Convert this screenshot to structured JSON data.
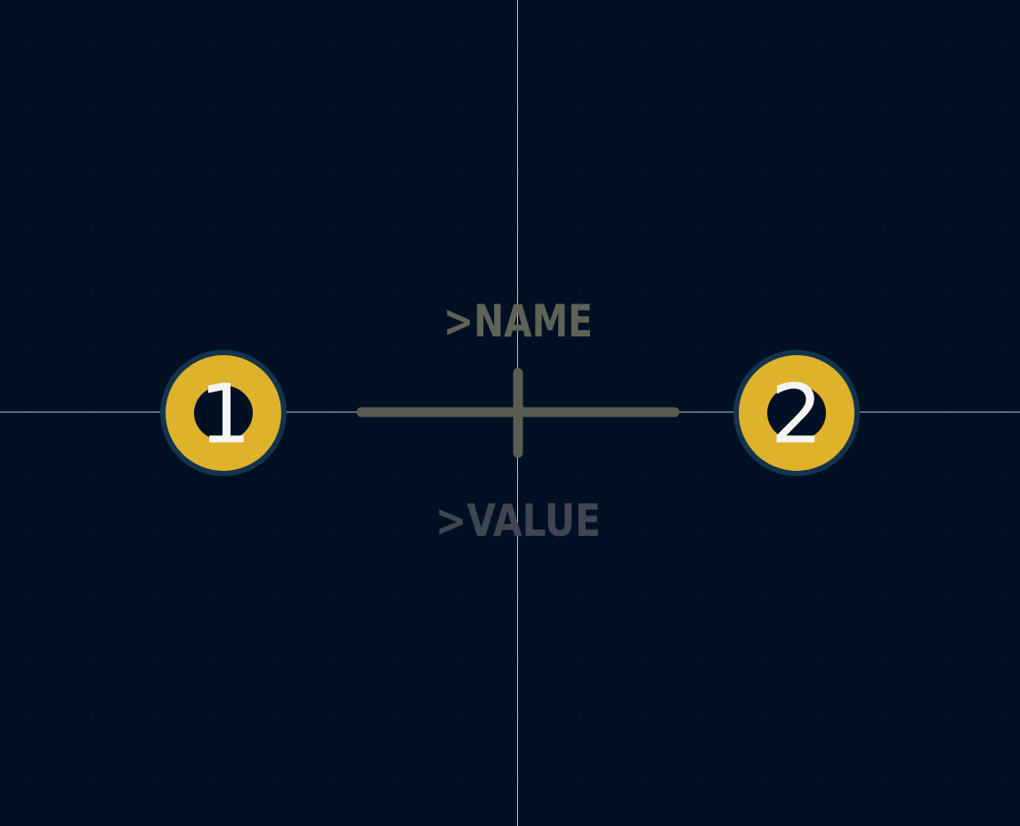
{
  "canvas": {
    "background_color": "#001023",
    "grid_dot_color": "#2a3a4d",
    "axis_color": "#b8c0cc"
  },
  "silkscreen": {
    "name_label": ">NAME",
    "name_color": "#5f6356",
    "value_label": ">VALUE",
    "value_color": "#3f4652",
    "outline_color": "#5a5e52",
    "icon": "cross-outline-icon"
  },
  "pads": [
    {
      "number": "1",
      "fill_color": "#dfb22b",
      "ring_color": "#12344d",
      "text_color": "#f5f5f5"
    },
    {
      "number": "2",
      "fill_color": "#dfb22b",
      "ring_color": "#12344d",
      "text_color": "#f5f5f5"
    }
  ]
}
